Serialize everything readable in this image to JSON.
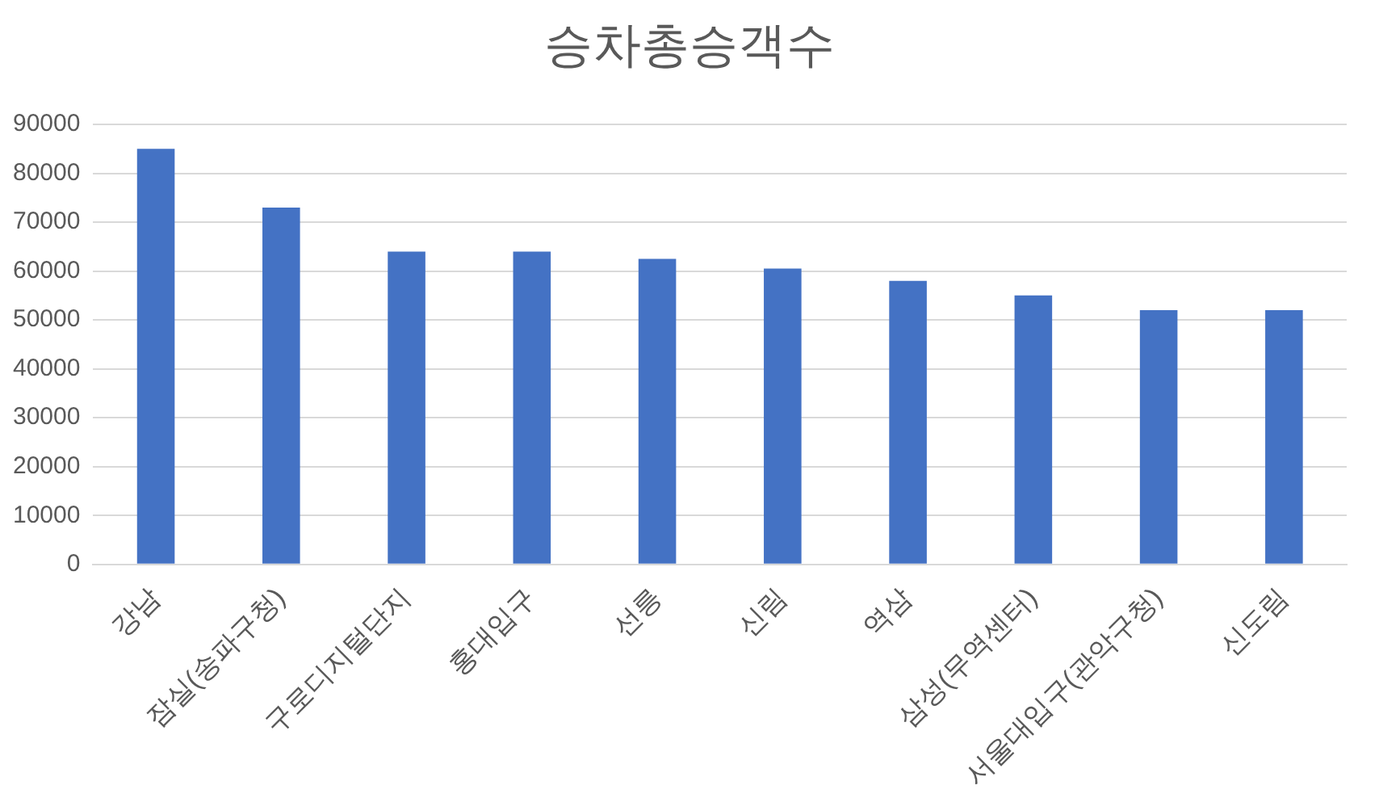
{
  "chart_data": {
    "type": "bar",
    "title": "승차총승객수",
    "categories": [
      "강남",
      "잠실(송파구청)",
      "구로디지털단지",
      "홍대입구",
      "선릉",
      "신림",
      "역삼",
      "삼성(무역센터)",
      "서울대입구(관악구청)",
      "신도림"
    ],
    "values": [
      85000,
      73000,
      64000,
      64000,
      62500,
      60500,
      58000,
      55000,
      52000,
      52000
    ],
    "color": "#4472c4",
    "ylim": [
      0,
      90000
    ],
    "yticks": [
      0,
      10000,
      20000,
      30000,
      40000,
      50000,
      60000,
      70000,
      80000,
      90000
    ],
    "grid": "y",
    "legend": false
  }
}
